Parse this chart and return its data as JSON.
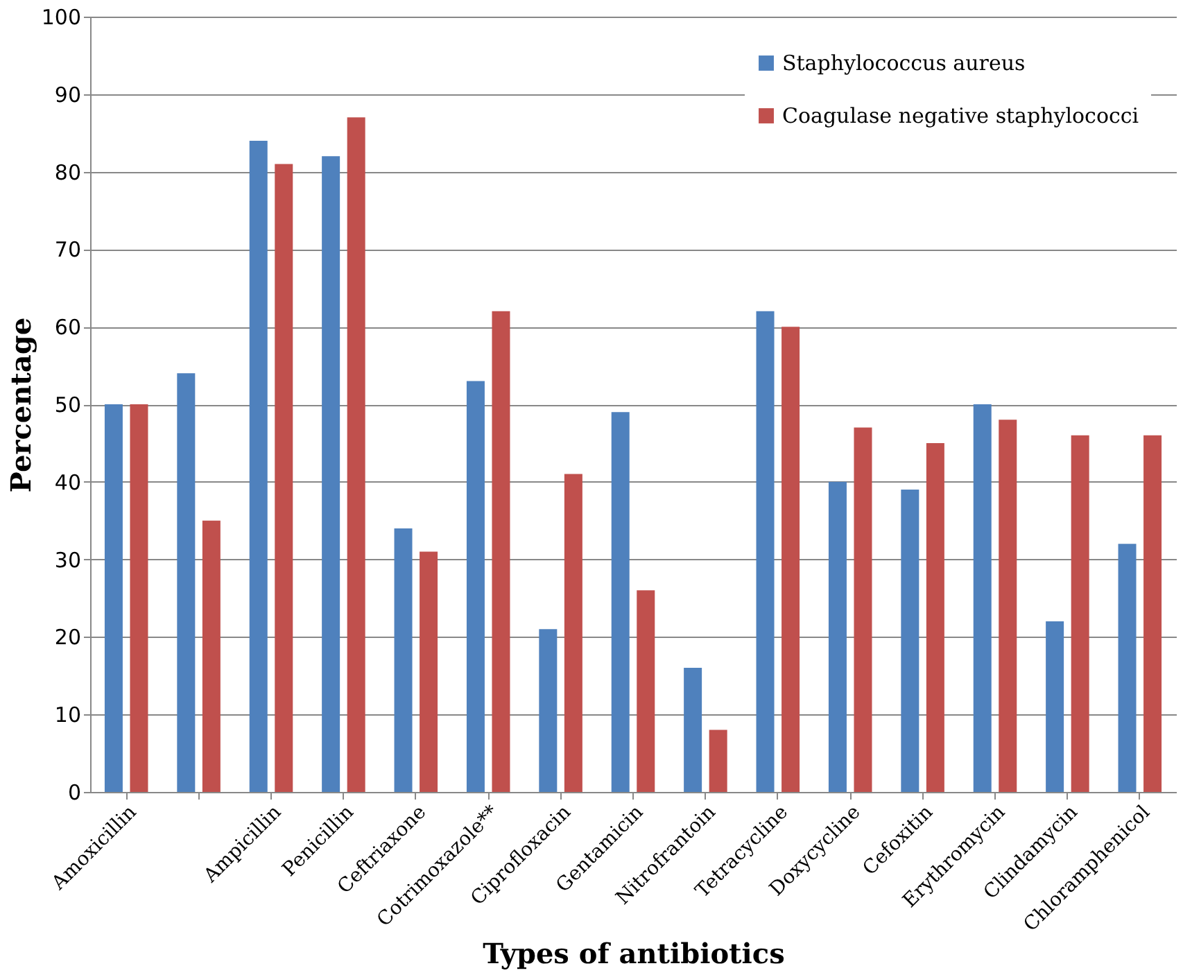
{
  "chart_data": {
    "type": "bar",
    "xlabel": "Types of antibiotics",
    "ylabel": "Percentage",
    "categories": [
      "Amoxicillin",
      null,
      "Ampicillin",
      "Penicillin",
      "Ceftriaxone",
      "Cotrimoxazole**",
      "Ciprofloxacin",
      "Gentamicin",
      "Nitrofrantoin",
      "Tetracycline",
      "Doxycycline",
      "Cefoxitin",
      "Erythromycin",
      "Clindamycin",
      "Chloramphenicol"
    ],
    "series": [
      {
        "name": "Staphylococcus aureus",
        "color": "#4f81bd",
        "values": [
          50,
          54,
          84,
          82,
          34,
          53,
          21,
          49,
          16,
          62,
          40,
          39,
          50,
          22,
          32
        ]
      },
      {
        "name": "Coagulase negative staphylococci",
        "color": "#c0504d",
        "values": [
          50,
          35,
          81,
          87,
          31,
          62,
          41,
          26,
          8,
          60,
          47,
          45,
          48,
          46,
          46
        ]
      }
    ],
    "ylim": [
      0,
      100
    ],
    "yticks": [
      0,
      10,
      20,
      30,
      40,
      50,
      60,
      70,
      80,
      90,
      100
    ],
    "grid": "y",
    "legend": "top right"
  }
}
